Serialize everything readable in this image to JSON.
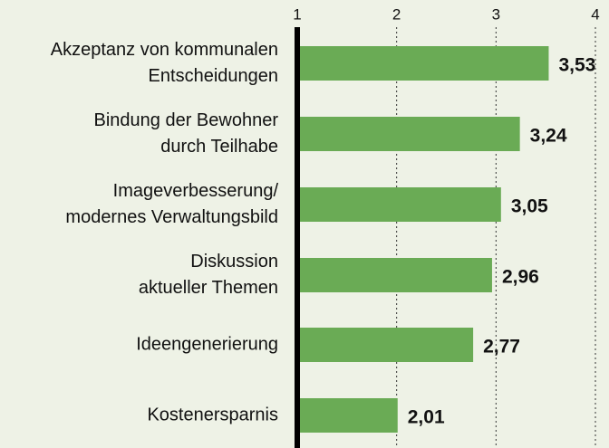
{
  "chart_data": {
    "type": "bar",
    "orientation": "horizontal",
    "categories": [
      [
        "Akzeptanz von kommunalen",
        "Entscheidungen"
      ],
      [
        "Bindung der Bewohner",
        "durch Teilhabe"
      ],
      [
        "Imageverbesserung/",
        "modernes Verwaltungsbild"
      ],
      [
        "Diskussion",
        "aktueller Themen"
      ],
      [
        "Ideengenerierung"
      ],
      [
        "Kostenersparnis"
      ]
    ],
    "values": [
      3.53,
      3.24,
      3.05,
      2.96,
      2.77,
      2.01
    ],
    "value_labels": [
      "3,53",
      "3,24",
      "3,05",
      "2,96",
      "2,77",
      "2,01"
    ],
    "color": "#6aab55",
    "xlim": [
      1,
      4
    ],
    "xticks": [
      1,
      2,
      3,
      4
    ],
    "grid": true
  }
}
